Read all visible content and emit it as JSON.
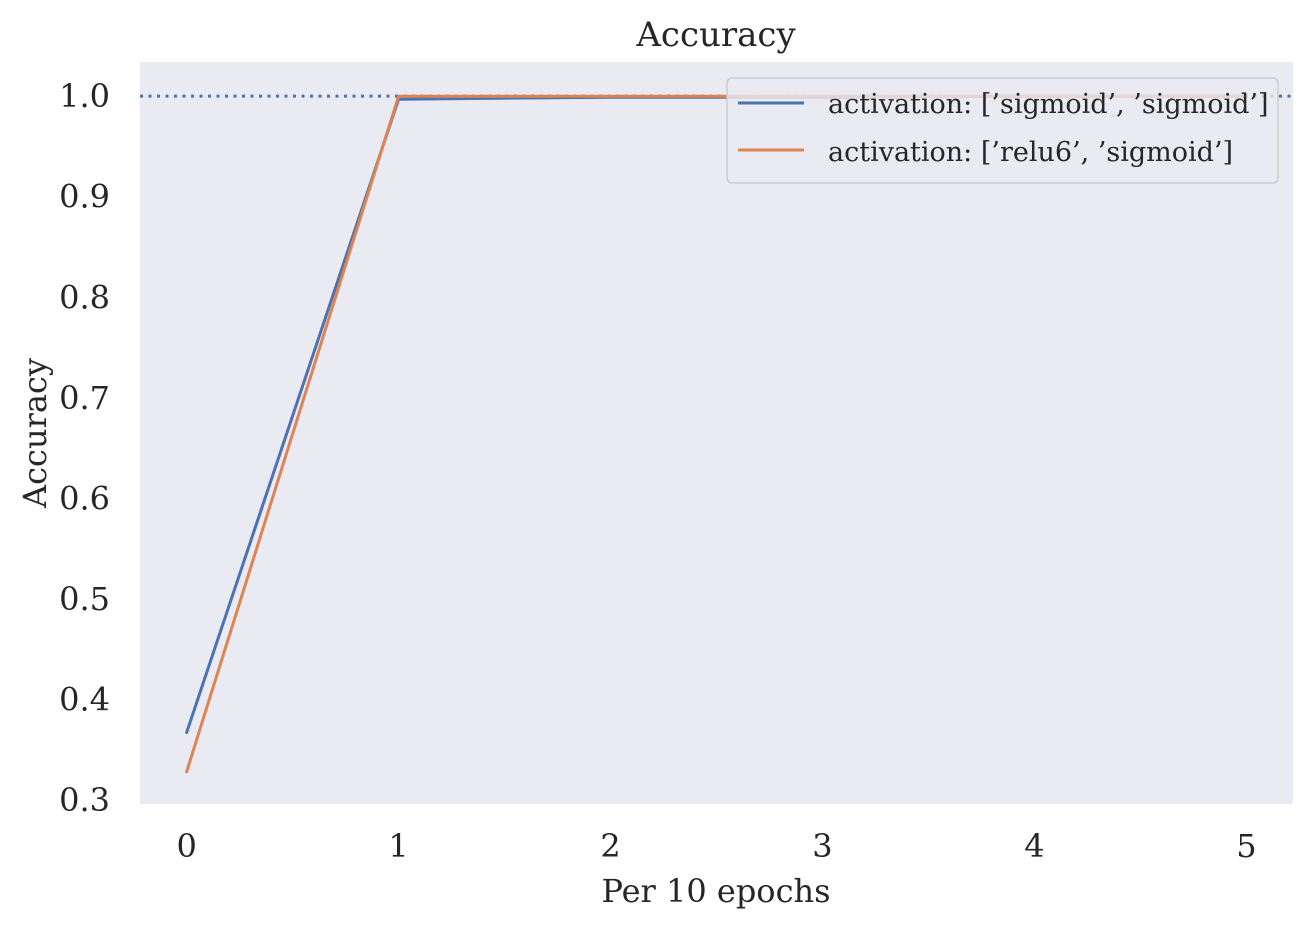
{
  "chart_data": {
    "type": "line",
    "title": "Accuracy",
    "xlabel": "Per 10 epochs",
    "ylabel": "Accuracy",
    "xlim": [
      -0.22,
      5.22
    ],
    "ylim": [
      0.296,
      1.034
    ],
    "xticks": [
      0,
      1,
      2,
      3,
      4,
      5
    ],
    "yticks": [
      0.3,
      0.4,
      0.5,
      0.6,
      0.7,
      0.8,
      0.9,
      1.0
    ],
    "ytick_labels": [
      "0.3",
      "0.4",
      "0.5",
      "0.6",
      "0.7",
      "0.8",
      "0.9",
      "1.0"
    ],
    "grid": false,
    "legend_position": "upper right",
    "reference_line": {
      "y": 1.0,
      "style": "dotted",
      "color": "#4c72b0"
    },
    "series": [
      {
        "name": "activation: [’sigmoid’, ’sigmoid’]",
        "color": "#4c72b0",
        "x": [
          0,
          1,
          2,
          3,
          4,
          5
        ],
        "y": [
          0.367,
          0.997,
          0.999,
          0.999,
          1.0,
          1.0
        ]
      },
      {
        "name": "activation: [’relu6’, ’sigmoid’]",
        "color": "#dd8452",
        "x": [
          0,
          1,
          2,
          3,
          4,
          5
        ],
        "y": [
          0.328,
          1.0,
          1.0,
          1.0,
          1.0,
          1.0
        ]
      }
    ]
  }
}
